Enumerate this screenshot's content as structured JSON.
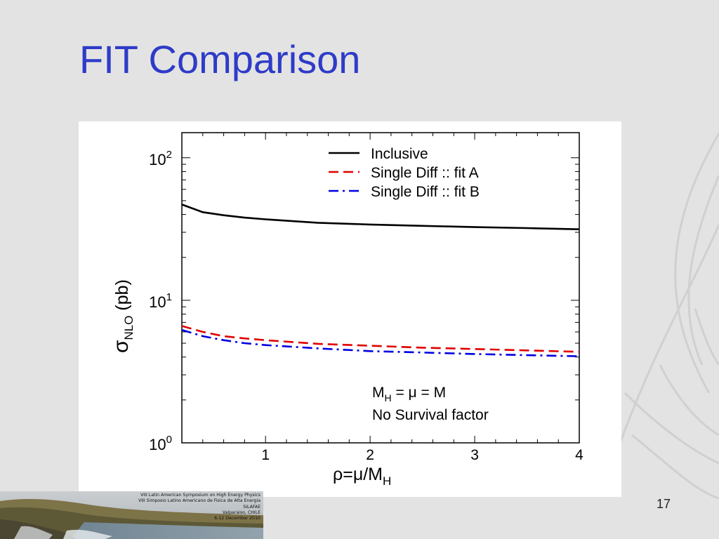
{
  "slide": {
    "title": "FIT Comparison",
    "page_number": "17",
    "title_color": "#2e3bc8",
    "background_color": "#e3e3e3"
  },
  "footer": {
    "lines": [
      "VIII Latin American Symposium on High Energy Physics",
      "VIII Simposio Latino Americano de Fisica de Alta Energia",
      "SILAFAE",
      "Valparaiso, CHILE",
      "6-12 December 2010"
    ]
  },
  "chart_data": {
    "type": "line",
    "xlabel": "ρ=μ/M",
    "xlabel_sub": "H",
    "ylabel": "σ",
    "ylabel_sub": "NLO",
    "ylabel_suffix": " (pb)",
    "xlim": [
      0.2,
      4
    ],
    "ylim": [
      1,
      150
    ],
    "yscale": "log",
    "x_ticks": [
      1,
      2,
      3,
      4
    ],
    "x_tick_labels": [
      "1",
      "2",
      "3",
      "4"
    ],
    "y_ticks": [
      1,
      10,
      100
    ],
    "y_tick_labels": [
      {
        "base": "10",
        "exp": "0"
      },
      {
        "base": "10",
        "exp": "1"
      },
      {
        "base": "10",
        "exp": "2"
      }
    ],
    "legend_position": "top-right",
    "series": [
      {
        "name": "Inclusive",
        "color": "#000000",
        "style": "solid",
        "x": [
          0.2,
          0.4,
          0.6,
          0.8,
          1.0,
          1.5,
          2.0,
          2.5,
          3.0,
          3.5,
          4.0
        ],
        "values": [
          47.0,
          41.5,
          39.5,
          38.0,
          37.0,
          35.0,
          34.0,
          33.3,
          32.6,
          32.1,
          31.5
        ]
      },
      {
        "name": "Single Diff :: fit A",
        "color": "#e00000",
        "style": "dash",
        "x": [
          0.2,
          0.4,
          0.6,
          0.8,
          1.0,
          1.5,
          2.0,
          2.5,
          3.0,
          3.5,
          4.0
        ],
        "values": [
          6.6,
          6.0,
          5.6,
          5.4,
          5.25,
          4.95,
          4.8,
          4.65,
          4.55,
          4.45,
          4.35
        ]
      },
      {
        "name": "Single Diff :: fit B",
        "color": "#0000e0",
        "style": "dashdot",
        "x": [
          0.2,
          0.4,
          0.6,
          0.8,
          1.0,
          1.5,
          2.0,
          2.5,
          3.0,
          3.5,
          4.0
        ],
        "values": [
          6.2,
          5.6,
          5.25,
          5.0,
          4.85,
          4.6,
          4.4,
          4.3,
          4.2,
          4.12,
          4.05
        ]
      }
    ],
    "annotations": [
      {
        "text": "M",
        "sub": "H",
        "rest": " = μ = M"
      },
      {
        "text": "No Survival factor"
      }
    ]
  }
}
